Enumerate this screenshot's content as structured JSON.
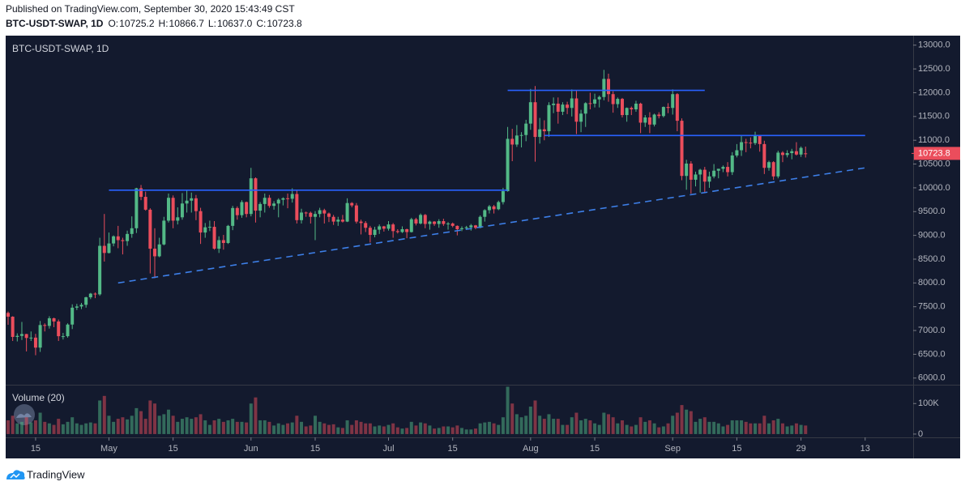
{
  "header": {
    "published": "Published on TradingView.com, September 30, 2020 15:43:49 CST"
  },
  "footer": {
    "brand": "TradingView"
  },
  "chart_data": {
    "type": "candlestick",
    "title": "BTC-USDT-SWAP, 1D",
    "ohlc_labels": [
      "O:",
      "H:",
      "L:",
      "C:"
    ],
    "ohlc_value_labels": [
      "10725.2",
      "10866.7",
      "10637.0",
      "10723.8"
    ],
    "volume_label": "Volume (20)",
    "up_color": "#53b987",
    "down_color": "#eb4d5c",
    "background": "#131a2e",
    "x": [
      "2020-04-09",
      "2020-04-10",
      "2020-04-11",
      "2020-04-12",
      "2020-04-13",
      "2020-04-14",
      "2020-04-15",
      "2020-04-16",
      "2020-04-17",
      "2020-04-18",
      "2020-04-19",
      "2020-04-20",
      "2020-04-21",
      "2020-04-22",
      "2020-04-23",
      "2020-04-24",
      "2020-04-25",
      "2020-04-26",
      "2020-04-27",
      "2020-04-28",
      "2020-04-29",
      "2020-04-30",
      "2020-05-01",
      "2020-05-02",
      "2020-05-03",
      "2020-05-04",
      "2020-05-05",
      "2020-05-06",
      "2020-05-07",
      "2020-05-08",
      "2020-05-09",
      "2020-05-10",
      "2020-05-11",
      "2020-05-12",
      "2020-05-13",
      "2020-05-14",
      "2020-05-15",
      "2020-05-16",
      "2020-05-17",
      "2020-05-18",
      "2020-05-19",
      "2020-05-20",
      "2020-05-21",
      "2020-05-22",
      "2020-05-23",
      "2020-05-24",
      "2020-05-25",
      "2020-05-26",
      "2020-05-27",
      "2020-05-28",
      "2020-05-29",
      "2020-05-30",
      "2020-05-31",
      "2020-06-01",
      "2020-06-02",
      "2020-06-03",
      "2020-06-04",
      "2020-06-05",
      "2020-06-06",
      "2020-06-07",
      "2020-06-08",
      "2020-06-09",
      "2020-06-10",
      "2020-06-11",
      "2020-06-12",
      "2020-06-13",
      "2020-06-14",
      "2020-06-15",
      "2020-06-16",
      "2020-06-17",
      "2020-06-18",
      "2020-06-19",
      "2020-06-20",
      "2020-06-21",
      "2020-06-22",
      "2020-06-23",
      "2020-06-24",
      "2020-06-25",
      "2020-06-26",
      "2020-06-27",
      "2020-06-28",
      "2020-06-29",
      "2020-06-30",
      "2020-07-01",
      "2020-07-02",
      "2020-07-03",
      "2020-07-04",
      "2020-07-05",
      "2020-07-06",
      "2020-07-07",
      "2020-07-08",
      "2020-07-09",
      "2020-07-10",
      "2020-07-11",
      "2020-07-12",
      "2020-07-13",
      "2020-07-14",
      "2020-07-15",
      "2020-07-16",
      "2020-07-17",
      "2020-07-18",
      "2020-07-19",
      "2020-07-20",
      "2020-07-21",
      "2020-07-22",
      "2020-07-23",
      "2020-07-24",
      "2020-07-25",
      "2020-07-26",
      "2020-07-27",
      "2020-07-28",
      "2020-07-29",
      "2020-07-30",
      "2020-07-31",
      "2020-08-01",
      "2020-08-02",
      "2020-08-03",
      "2020-08-04",
      "2020-08-05",
      "2020-08-06",
      "2020-08-07",
      "2020-08-08",
      "2020-08-09",
      "2020-08-10",
      "2020-08-11",
      "2020-08-12",
      "2020-08-13",
      "2020-08-14",
      "2020-08-15",
      "2020-08-16",
      "2020-08-17",
      "2020-08-18",
      "2020-08-19",
      "2020-08-20",
      "2020-08-21",
      "2020-08-22",
      "2020-08-23",
      "2020-08-24",
      "2020-08-25",
      "2020-08-26",
      "2020-08-27",
      "2020-08-28",
      "2020-08-29",
      "2020-08-30",
      "2020-08-31",
      "2020-09-01",
      "2020-09-02",
      "2020-09-03",
      "2020-09-04",
      "2020-09-05",
      "2020-09-06",
      "2020-09-07",
      "2020-09-08",
      "2020-09-09",
      "2020-09-10",
      "2020-09-11",
      "2020-09-12",
      "2020-09-13",
      "2020-09-14",
      "2020-09-15",
      "2020-09-16",
      "2020-09-17",
      "2020-09-18",
      "2020-09-19",
      "2020-09-20",
      "2020-09-21",
      "2020-09-22",
      "2020-09-23",
      "2020-09-24",
      "2020-09-25",
      "2020-09-26",
      "2020-09-27",
      "2020-09-28",
      "2020-09-29",
      "2020-09-30"
    ],
    "open": [
      7370,
      7290,
      6865,
      6887,
      6925,
      6843,
      6850,
      6640,
      7115,
      7097,
      7257,
      7190,
      6880,
      6880,
      7125,
      7480,
      7505,
      7540,
      7698,
      7775,
      7760,
      8780,
      8630,
      8830,
      8980,
      8900,
      8880,
      9030,
      9150,
      9990,
      9810,
      9540,
      8720,
      8560,
      8810,
      9310,
      9790,
      9310,
      9380,
      9670,
      9730,
      9780,
      9510,
      9060,
      9170,
      9180,
      8720,
      8900,
      8840,
      9200,
      9575,
      9425,
      9700,
      9450,
      10200,
      9520,
      9660,
      9790,
      9620,
      9670,
      9750,
      9780,
      9770,
      9870,
      9320,
      9480,
      9475,
      9390,
      9450,
      9530,
      9460,
      9390,
      9290,
      9330,
      9290,
      9680,
      9630,
      9290,
      9260,
      9160,
      9010,
      9120,
      9190,
      9140,
      9230,
      9090,
      9070,
      9130,
      9070,
      9340,
      9250,
      9430,
      9240,
      9290,
      9240,
      9300,
      9240,
      9250,
      9200,
      9130,
      9150,
      9170,
      9210,
      9160,
      9390,
      9530,
      9610,
      9550,
      9700,
      9930,
      11030,
      10910,
      11100,
      11110,
      11350,
      11800,
      11070,
      11230,
      11190,
      11740,
      11770,
      11600,
      11750,
      11680,
      11880,
      11390,
      11560,
      11780,
      11770,
      11860,
      11910,
      12290,
      11970,
      11760,
      11870,
      11530,
      11680,
      11650,
      11770,
      11370,
      11480,
      11330,
      11540,
      11510,
      11700,
      11680,
      11970,
      11410,
      10250,
      10510,
      10170,
      10280,
      10380,
      10130,
      10240,
      10360,
      10400,
      10440,
      10330,
      10680,
      10790,
      10960,
      10950,
      10940,
      11090,
      10920,
      10420,
      10540,
      10240,
      10740,
      10690,
      10730,
      10770,
      10700,
      10725.2
    ],
    "high": [
      7400,
      7300,
      6940,
      7180,
      6930,
      6980,
      6930,
      7200,
      7150,
      7300,
      7270,
      7230,
      6950,
      7150,
      7550,
      7560,
      7580,
      7710,
      7790,
      7800,
      8950,
      9450,
      9060,
      9000,
      9200,
      8950,
      9100,
      9400,
      10000,
      10060,
      9920,
      9570,
      9150,
      8950,
      9390,
      9880,
      9840,
      9590,
      9890,
      9950,
      9900,
      9850,
      9580,
      9260,
      9310,
      9300,
      8980,
      9010,
      9220,
      9620,
      9610,
      9740,
      9710,
      10420,
      10220,
      9700,
      9880,
      9850,
      9720,
      9780,
      9800,
      9880,
      9990,
      9950,
      9560,
      9500,
      9500,
      9510,
      9580,
      9560,
      9480,
      9430,
      9390,
      9430,
      9780,
      9700,
      9680,
      9330,
      9300,
      9200,
      9180,
      9230,
      9200,
      9300,
      9260,
      9130,
      9190,
      9140,
      9370,
      9370,
      9460,
      9450,
      9310,
      9300,
      9340,
      9350,
      9280,
      9270,
      9210,
      9190,
      9200,
      9240,
      9220,
      9420,
      9550,
      9640,
      9640,
      9730,
      10000,
      11280,
      11240,
      11320,
      11170,
      11430,
      12080,
      12140,
      11470,
      11420,
      11800,
      11900,
      11900,
      11800,
      11810,
      12070,
      12050,
      11640,
      11800,
      12000,
      11980,
      11940,
      12480,
      12400,
      12030,
      11900,
      11890,
      11690,
      11710,
      11830,
      11790,
      11530,
      11590,
      11560,
      11590,
      11710,
      11780,
      12070,
      11990,
      11460,
      10590,
      10560,
      10340,
      10400,
      10440,
      10340,
      10500,
      10400,
      10470,
      10540,
      10750,
      10920,
      11100,
      11030,
      11060,
      11180,
      11100,
      10990,
      10570,
      10560,
      10780,
      10770,
      10790,
      10820,
      10960,
      10870,
      10866.7
    ],
    "low": [
      7120,
      6780,
      6770,
      6800,
      6560,
      6780,
      6480,
      6550,
      6980,
      7040,
      7070,
      6780,
      6810,
      6850,
      7030,
      7430,
      7450,
      7480,
      7660,
      7680,
      7730,
      8450,
      8620,
      8770,
      8730,
      8600,
      8780,
      8950,
      9050,
      9740,
      9520,
      8200,
      8100,
      8540,
      8790,
      9270,
      9150,
      9230,
      9330,
      9480,
      9480,
      9320,
      8820,
      8950,
      9090,
      8700,
      8630,
      8700,
      8820,
      9110,
      9330,
      9370,
      9380,
      9400,
      9270,
      9380,
      9480,
      9580,
      9540,
      9380,
      9630,
      9570,
      9690,
      9250,
      9250,
      9390,
      9250,
      8900,
      9380,
      9250,
      9280,
      9220,
      9200,
      9270,
      9280,
      9590,
      9250,
      9020,
      9070,
      8850,
      8960,
      9030,
      9080,
      9100,
      8950,
      9040,
      9050,
      8940,
      9060,
      9210,
      9230,
      9150,
      9120,
      9200,
      9160,
      9200,
      9120,
      9170,
      9000,
      9090,
      9120,
      9100,
      9130,
      9150,
      9290,
      9460,
      9460,
      9530,
      9650,
      9920,
      10560,
      10860,
      10850,
      10980,
      11220,
      10550,
      10930,
      11000,
      11070,
      11570,
      11350,
      11530,
      11550,
      11500,
      11130,
      11170,
      11280,
      11650,
      11690,
      11690,
      11840,
      11810,
      11580,
      11680,
      11480,
      11390,
      11530,
      11600,
      11150,
      11280,
      11150,
      11290,
      11460,
      11480,
      11570,
      11540,
      11190,
      10160,
      9960,
      9880,
      10030,
      9900,
      9900,
      10000,
      10200,
      10200,
      10330,
      10240,
      10270,
      10640,
      10670,
      10750,
      10830,
      10900,
      10760,
      10290,
      10360,
      10170,
      10200,
      10540,
      10640,
      10600,
      10680,
      10650,
      10637
    ],
    "close": [
      7290,
      6865,
      6887,
      6925,
      6843,
      6850,
      6640,
      7115,
      7097,
      7257,
      7190,
      6880,
      6880,
      7125,
      7480,
      7505,
      7540,
      7698,
      7775,
      7760,
      8780,
      8630,
      8830,
      8980,
      8900,
      8880,
      9030,
      9150,
      9990,
      9810,
      9540,
      8720,
      8560,
      8810,
      9310,
      9790,
      9310,
      9380,
      9670,
      9730,
      9780,
      9510,
      9060,
      9170,
      9180,
      8720,
      8900,
      8840,
      9200,
      9575,
      9425,
      9700,
      9450,
      10200,
      9520,
      9660,
      9790,
      9620,
      9670,
      9750,
      9780,
      9770,
      9870,
      9320,
      9480,
      9475,
      9390,
      9450,
      9530,
      9460,
      9390,
      9290,
      9330,
      9290,
      9680,
      9630,
      9290,
      9260,
      9160,
      9010,
      9120,
      9190,
      9140,
      9230,
      9090,
      9070,
      9130,
      9070,
      9340,
      9250,
      9430,
      9240,
      9290,
      9240,
      9300,
      9240,
      9250,
      9200,
      9130,
      9150,
      9170,
      9210,
      9160,
      9390,
      9530,
      9610,
      9550,
      9700,
      9930,
      11030,
      10910,
      11100,
      11110,
      11350,
      11800,
      11070,
      11230,
      11190,
      11740,
      11770,
      11600,
      11750,
      11680,
      11880,
      11390,
      11560,
      11780,
      11770,
      11860,
      11910,
      12290,
      11970,
      11760,
      11870,
      11530,
      11680,
      11650,
      11770,
      11370,
      11480,
      11330,
      11540,
      11510,
      11700,
      11680,
      11970,
      11410,
      10250,
      10510,
      10170,
      10280,
      10380,
      10130,
      10240,
      10360,
      10400,
      10440,
      10330,
      10680,
      10790,
      10960,
      10950,
      10940,
      11090,
      10920,
      10420,
      10540,
      10240,
      10740,
      10690,
      10730,
      10770,
      10700,
      10840,
      10723.8
    ],
    "volume": [
      45000,
      60000,
      35000,
      40000,
      55000,
      38000,
      45000,
      70000,
      40000,
      35000,
      30000,
      50000,
      32000,
      40000,
      55000,
      35000,
      30000,
      35000,
      38000,
      35000,
      110000,
      125000,
      60000,
      40000,
      50000,
      55000,
      48000,
      60000,
      85000,
      75000,
      50000,
      110000,
      100000,
      60000,
      65000,
      80000,
      60000,
      40000,
      50000,
      55000,
      50000,
      55000,
      65000,
      45000,
      30000,
      45000,
      50000,
      40000,
      45000,
      50000,
      40000,
      40000,
      38000,
      100000,
      120000,
      45000,
      45000,
      40000,
      28000,
      35000,
      30000,
      35000,
      38000,
      60000,
      40000,
      25000,
      28000,
      60000,
      40000,
      35000,
      30000,
      32000,
      22000,
      20000,
      45000,
      30000,
      45000,
      40000,
      35000,
      35000,
      25000,
      28000,
      25000,
      30000,
      35000,
      22000,
      18000,
      20000,
      40000,
      28000,
      38000,
      35000,
      28000,
      18000,
      20000,
      25000,
      25000,
      22000,
      28000,
      20000,
      15000,
      15000,
      18000,
      35000,
      38000,
      40000,
      35000,
      30000,
      55000,
      155000,
      100000,
      65000,
      55000,
      60000,
      90000,
      110000,
      60000,
      50000,
      65000,
      50000,
      50000,
      30000,
      30000,
      55000,
      70000,
      45000,
      50000,
      45000,
      35000,
      30000,
      70000,
      65000,
      55000,
      35000,
      45000,
      30000,
      25000,
      30000,
      55000,
      40000,
      45000,
      35000,
      22000,
      25000,
      35000,
      60000,
      70000,
      95000,
      80000,
      75000,
      40000,
      50000,
      55000,
      40000,
      40000,
      35000,
      25000,
      30000,
      45000,
      45000,
      45000,
      40000,
      35000,
      35000,
      35000,
      60000,
      35000,
      45000,
      50000,
      35000,
      25000,
      28000,
      35000,
      30000,
      28000
    ],
    "xlim": [
      "2020-04-09",
      "2020-10-24"
    ],
    "xticks": [
      {
        "value": "2020-04-15",
        "label": "15"
      },
      {
        "value": "2020-05-01",
        "label": "May"
      },
      {
        "value": "2020-05-15",
        "label": "15"
      },
      {
        "value": "2020-06-01",
        "label": "Jun"
      },
      {
        "value": "2020-06-15",
        "label": "15"
      },
      {
        "value": "2020-07-01",
        "label": "Jul"
      },
      {
        "value": "2020-07-15",
        "label": "15"
      },
      {
        "value": "2020-08-01",
        "label": "Aug"
      },
      {
        "value": "2020-08-15",
        "label": "15"
      },
      {
        "value": "2020-09-01",
        "label": "Sep"
      },
      {
        "value": "2020-09-15",
        "label": "15"
      },
      {
        "value": "2020-09-29",
        "label": "29"
      },
      {
        "value": "2020-10-13",
        "label": "13"
      }
    ],
    "ylim": [
      5860,
      13200
    ],
    "yticks": [
      {
        "value": 6000,
        "label": "6000.0"
      },
      {
        "value": 6500,
        "label": "6500.0"
      },
      {
        "value": 7000,
        "label": "7000.0"
      },
      {
        "value": 7500,
        "label": "7500.0"
      },
      {
        "value": 8000,
        "label": "8000.0"
      },
      {
        "value": 8500,
        "label": "8500.0"
      },
      {
        "value": 9000,
        "label": "9000.0"
      },
      {
        "value": 9500,
        "label": "9500.0"
      },
      {
        "value": 10000,
        "label": "10000.0"
      },
      {
        "value": 10500,
        "label": "10500.0"
      },
      {
        "value": 11000,
        "label": "11000.0"
      },
      {
        "value": 11500,
        "label": "11500.0"
      },
      {
        "value": 12000,
        "label": "12000.0"
      },
      {
        "value": 12500,
        "label": "12500.0"
      },
      {
        "value": 13000,
        "label": "13000.0"
      }
    ],
    "volume_ylim": [
      -10800,
      159000
    ],
    "volume_ticks": [
      {
        "value": 100000,
        "label": "100K"
      },
      0
    ],
    "grid": false,
    "drawings": [
      {
        "x": [
          "2020-05-01",
          "2020-07-27"
        ],
        "y": [
          9950,
          9950
        ],
        "color": "#2962ff",
        "style": "solid"
      },
      {
        "x": [
          "2020-07-27",
          "2020-09-08"
        ],
        "y": [
          12050,
          12050
        ],
        "color": "#2962ff",
        "style": "solid"
      },
      {
        "x": [
          "2020-08-04",
          "2020-10-13"
        ],
        "y": [
          11100,
          11100
        ],
        "color": "#2962ff",
        "style": "solid"
      },
      {
        "x": [
          "2020-05-03",
          "2020-10-13"
        ],
        "y": [
          8000,
          10420
        ],
        "color": "#3d7fe8",
        "style": "dashed"
      }
    ]
  }
}
